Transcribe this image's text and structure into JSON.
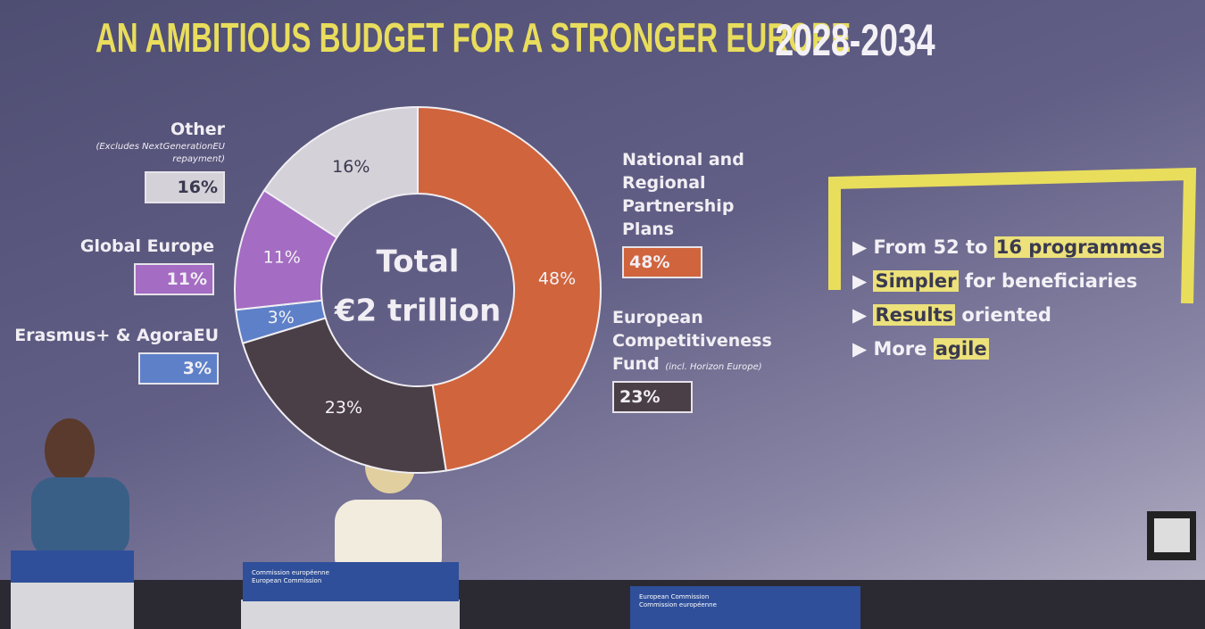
{
  "chart_data": {
    "type": "pie",
    "donut": true,
    "title": "AN AMBITIOUS BUDGET FOR A STRONGER EUROPE",
    "subtitle": "2028-2034",
    "center_label": [
      "Total",
      "€2 trillion"
    ],
    "categories": [
      "National and Regional Partnership Plans",
      "European Competitiveness Fund",
      "Erasmus+ & AgoraEU",
      "Global Europe",
      "Other"
    ],
    "category_notes": [
      null,
      "(incl. Horizon Europe)",
      null,
      null,
      "(Excludes NextGenerationEU repayment)"
    ],
    "values": [
      48,
      23,
      3,
      11,
      16
    ],
    "value_labels": [
      "48%",
      "23%",
      "3%",
      "11%",
      "16%"
    ],
    "colors": [
      "#d0643c",
      "#4a3f47",
      "#5d80c8",
      "#a46cc2",
      "#d4d1d8"
    ]
  },
  "highlights": {
    "items": [
      {
        "parts": [
          {
            "text": "From 52 to "
          },
          {
            "text": "16 programmes",
            "highlight": true
          }
        ]
      },
      {
        "parts": [
          {
            "text": "Simpler",
            "highlight": true
          },
          {
            "text": " for beneficiaries"
          }
        ]
      },
      {
        "parts": [
          {
            "text": "Results",
            "highlight": true
          },
          {
            "text": " oriented"
          }
        ]
      },
      {
        "parts": [
          {
            "text": "More "
          },
          {
            "text": "agile",
            "highlight": true
          }
        ]
      }
    ]
  },
  "podiums": [
    [
      "Commission européenne",
      "European Commission"
    ],
    [
      "European Commission",
      "Commission européenne"
    ]
  ]
}
